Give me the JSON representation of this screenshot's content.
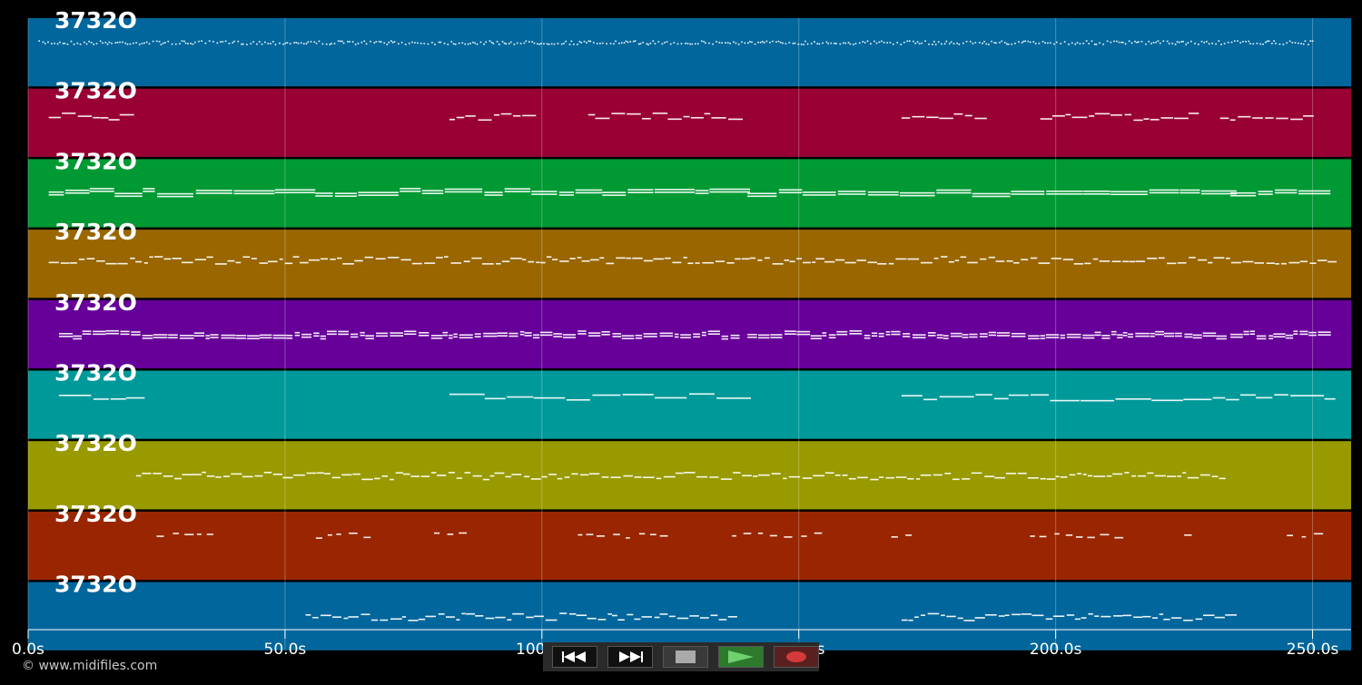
{
  "track_name": "3732O",
  "tracks": [
    {
      "label": "3732O",
      "color": "#00669c",
      "note_style": "dots"
    },
    {
      "label": "3732O",
      "color": "#990033",
      "note_style": "phrases"
    },
    {
      "label": "3732O",
      "color": "#009933",
      "note_style": "sustained"
    },
    {
      "label": "3732O",
      "color": "#996600",
      "note_style": "melody"
    },
    {
      "label": "3732O",
      "color": "#660099",
      "note_style": "chords"
    },
    {
      "label": "3732O",
      "color": "#009999",
      "note_style": "lines"
    },
    {
      "label": "3732O",
      "color": "#999900",
      "note_style": "melody"
    },
    {
      "label": "3732O",
      "color": "#992600",
      "note_style": "sparse"
    },
    {
      "label": "3732O",
      "color": "#00669c",
      "note_style": "melody"
    }
  ],
  "time_axis": {
    "ticks": [
      {
        "value": 0,
        "label": "0.0s"
      },
      {
        "value": 50,
        "label": "50.0s"
      },
      {
        "value": 100,
        "label": "100.0s"
      },
      {
        "value": 150,
        "label": "150.0s"
      },
      {
        "value": 200,
        "label": "200.0s"
      },
      {
        "value": 250,
        "label": "250.0s"
      }
    ],
    "range": [
      0,
      257.5
    ],
    "unit": "s"
  },
  "copyright": "© www.midifiles.com",
  "transport": {
    "rewind_icon": "rewind-icon",
    "fast_forward_icon": "fast-forward-icon",
    "stop_icon": "stop-icon",
    "play_icon": "play-icon",
    "record_icon": "record-icon",
    "colors": {
      "play": "#2d7a2d",
      "record": "#5a1f1f",
      "stop": "#3a3a3a"
    }
  }
}
